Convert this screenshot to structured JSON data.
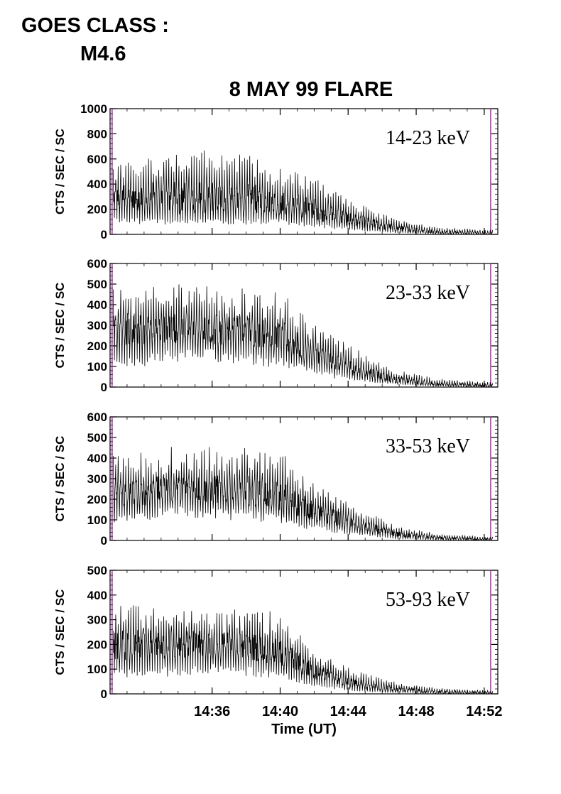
{
  "header": {
    "goes_label": "GOES CLASS :",
    "goes_value": "M4.6"
  },
  "chart_data": {
    "type": "line",
    "title": "8 MAY 99 FLARE",
    "xlabel": "Time (UT)",
    "x_unit": "minutes since 14:32 UT",
    "xlim": [
      14.5,
      14.88
    ],
    "x_ticks": [
      {
        "label": "14:36",
        "value": 14.6
      },
      {
        "label": "14:40",
        "value": 14.6667
      },
      {
        "label": "14:44",
        "value": 14.7333
      },
      {
        "label": "14:48",
        "value": 14.8
      },
      {
        "label": "14:52",
        "value": 14.8667
      }
    ],
    "marker_color": "#a020a0",
    "line_color": "#000000",
    "panels": [
      {
        "name": "14-23 keV",
        "ylabel": "CTS / SEC / SC",
        "ylim": [
          0,
          1000
        ],
        "yticks": [
          0,
          200,
          400,
          600,
          800,
          1000
        ],
        "envelope": [
          {
            "t": 14.52,
            "lo": 120,
            "hi": 480,
            "mid": 300
          },
          {
            "t": 14.56,
            "lo": 110,
            "hi": 560,
            "mid": 290
          },
          {
            "t": 14.6,
            "lo": 110,
            "hi": 560,
            "mid": 300
          },
          {
            "t": 14.64,
            "lo": 110,
            "hi": 520,
            "mid": 280
          },
          {
            "t": 14.66,
            "lo": 120,
            "hi": 460,
            "mid": 260
          },
          {
            "t": 14.7,
            "lo": 80,
            "hi": 380,
            "mid": 200
          },
          {
            "t": 14.74,
            "lo": 40,
            "hi": 220,
            "mid": 110
          },
          {
            "t": 14.78,
            "lo": 15,
            "hi": 100,
            "mid": 50
          },
          {
            "t": 14.82,
            "lo": 5,
            "hi": 50,
            "mid": 20
          },
          {
            "t": 14.87,
            "lo": 0,
            "hi": 30,
            "mid": 10
          }
        ]
      },
      {
        "name": "23-33 keV",
        "ylabel": "CTS / SEC / SC",
        "ylim": [
          0,
          600
        ],
        "yticks": [
          0,
          100,
          200,
          300,
          400,
          500,
          600
        ],
        "envelope": [
          {
            "t": 14.52,
            "lo": 130,
            "hi": 400,
            "mid": 280
          },
          {
            "t": 14.56,
            "lo": 170,
            "hi": 420,
            "mid": 290
          },
          {
            "t": 14.6,
            "lo": 170,
            "hi": 420,
            "mid": 280
          },
          {
            "t": 14.64,
            "lo": 150,
            "hi": 400,
            "mid": 270
          },
          {
            "t": 14.67,
            "lo": 130,
            "hi": 380,
            "mid": 240
          },
          {
            "t": 14.7,
            "lo": 80,
            "hi": 260,
            "mid": 160
          },
          {
            "t": 14.74,
            "lo": 40,
            "hi": 160,
            "mid": 90
          },
          {
            "t": 14.78,
            "lo": 15,
            "hi": 70,
            "mid": 35
          },
          {
            "t": 14.82,
            "lo": 5,
            "hi": 35,
            "mid": 15
          },
          {
            "t": 14.87,
            "lo": 0,
            "hi": 20,
            "mid": 8
          }
        ]
      },
      {
        "name": "33-53 keV",
        "ylabel": "CTS / SEC / SC",
        "ylim": [
          0,
          600
        ],
        "yticks": [
          0,
          100,
          200,
          300,
          400,
          500,
          600
        ],
        "envelope": [
          {
            "t": 14.52,
            "lo": 120,
            "hi": 350,
            "mid": 230
          },
          {
            "t": 14.56,
            "lo": 150,
            "hi": 380,
            "mid": 250
          },
          {
            "t": 14.6,
            "lo": 150,
            "hi": 380,
            "mid": 250
          },
          {
            "t": 14.64,
            "lo": 130,
            "hi": 380,
            "mid": 240
          },
          {
            "t": 14.67,
            "lo": 110,
            "hi": 360,
            "mid": 210
          },
          {
            "t": 14.7,
            "lo": 70,
            "hi": 230,
            "mid": 140
          },
          {
            "t": 14.74,
            "lo": 35,
            "hi": 140,
            "mid": 80
          },
          {
            "t": 14.78,
            "lo": 10,
            "hi": 60,
            "mid": 30
          },
          {
            "t": 14.82,
            "lo": 3,
            "hi": 30,
            "mid": 12
          },
          {
            "t": 14.87,
            "lo": 0,
            "hi": 15,
            "mid": 5
          }
        ]
      },
      {
        "name": "53-93 keV",
        "ylabel": "CTS / SEC / SC",
        "ylim": [
          0,
          500
        ],
        "yticks": [
          0,
          100,
          200,
          300,
          400,
          500
        ],
        "envelope": [
          {
            "t": 14.52,
            "lo": 90,
            "hi": 300,
            "mid": 200
          },
          {
            "t": 14.56,
            "lo": 100,
            "hi": 290,
            "mid": 200
          },
          {
            "t": 14.6,
            "lo": 110,
            "hi": 290,
            "mid": 200
          },
          {
            "t": 14.64,
            "lo": 100,
            "hi": 290,
            "mid": 190
          },
          {
            "t": 14.67,
            "lo": 80,
            "hi": 270,
            "mid": 160
          },
          {
            "t": 14.7,
            "lo": 40,
            "hi": 150,
            "mid": 90
          },
          {
            "t": 14.74,
            "lo": 15,
            "hi": 80,
            "mid": 40
          },
          {
            "t": 14.78,
            "lo": 5,
            "hi": 40,
            "mid": 18
          },
          {
            "t": 14.82,
            "lo": 2,
            "hi": 20,
            "mid": 8
          },
          {
            "t": 14.87,
            "lo": 0,
            "hi": 12,
            "mid": 4
          }
        ]
      }
    ]
  }
}
